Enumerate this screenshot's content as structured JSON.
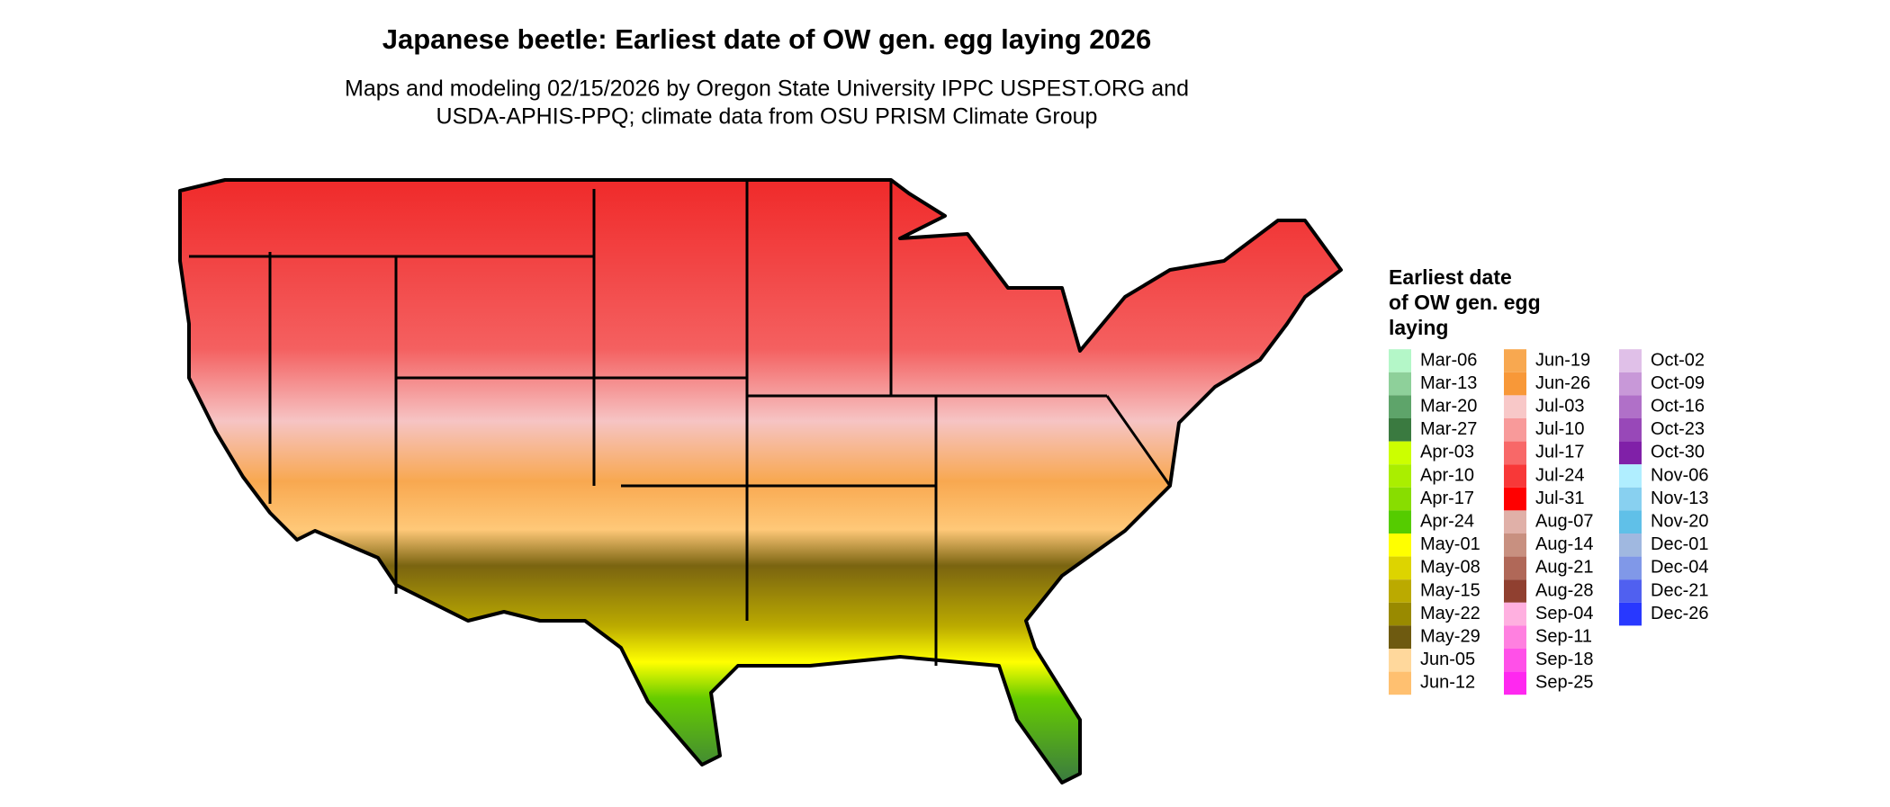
{
  "header": {
    "title": "Japanese beetle: Earliest date of OW gen. egg laying 2026",
    "subtitle_lines": [
      "Maps and modeling 02/15/2026 by Oregon State University IPPC USPEST.ORG and",
      "USDA-APHIS-PPQ; climate data from OSU PRISM Climate Group"
    ]
  },
  "legend": {
    "title_lines": [
      "Earliest date",
      "of OW gen. egg",
      "laying"
    ],
    "entries": [
      {
        "label": "Mar-06",
        "color": "#b4f7c8"
      },
      {
        "label": "Mar-13",
        "color": "#8ed09a"
      },
      {
        "label": "Mar-20",
        "color": "#5ea46a"
      },
      {
        "label": "Mar-27",
        "color": "#3a7a40"
      },
      {
        "label": "Apr-03",
        "color": "#ccff00"
      },
      {
        "label": "Apr-10",
        "color": "#aaee00"
      },
      {
        "label": "Apr-17",
        "color": "#88dd00"
      },
      {
        "label": "Apr-24",
        "color": "#55cc00"
      },
      {
        "label": "May-01",
        "color": "#ffff00"
      },
      {
        "label": "May-08",
        "color": "#ddd400"
      },
      {
        "label": "May-15",
        "color": "#bbaa00"
      },
      {
        "label": "May-22",
        "color": "#998a00"
      },
      {
        "label": "May-29",
        "color": "#6e5a10"
      },
      {
        "label": "Jun-05",
        "color": "#ffd89c"
      },
      {
        "label": "Jun-12",
        "color": "#ffc070"
      },
      {
        "label": "Jun-19",
        "color": "#f8a850"
      },
      {
        "label": "Jun-26",
        "color": "#f89838"
      },
      {
        "label": "Jul-03",
        "color": "#f8c8c8"
      },
      {
        "label": "Jul-10",
        "color": "#f89a9a"
      },
      {
        "label": "Jul-17",
        "color": "#f86868"
      },
      {
        "label": "Jul-24",
        "color": "#f83838"
      },
      {
        "label": "Jul-31",
        "color": "#ff0000"
      },
      {
        "label": "Aug-07",
        "color": "#e0b0a8"
      },
      {
        "label": "Aug-14",
        "color": "#c89080"
      },
      {
        "label": "Aug-21",
        "color": "#b06858"
      },
      {
        "label": "Aug-28",
        "color": "#904030"
      },
      {
        "label": "Sep-04",
        "color": "#ffb0e0"
      },
      {
        "label": "Sep-11",
        "color": "#ff80e0"
      },
      {
        "label": "Sep-18",
        "color": "#ff50e8"
      },
      {
        "label": "Sep-25",
        "color": "#ff28f0"
      },
      {
        "label": "Oct-02",
        "color": "#e0c0e8"
      },
      {
        "label": "Oct-09",
        "color": "#c898d8"
      },
      {
        "label": "Oct-16",
        "color": "#b070c8"
      },
      {
        "label": "Oct-23",
        "color": "#9848b8"
      },
      {
        "label": "Oct-30",
        "color": "#8020a8"
      },
      {
        "label": "Nov-06",
        "color": "#b0eeff"
      },
      {
        "label": "Nov-13",
        "color": "#88d0f0"
      },
      {
        "label": "Nov-20",
        "color": "#60c0e8"
      },
      {
        "label": "Dec-01",
        "color": "#a0b8e0"
      },
      {
        "label": "Dec-04",
        "color": "#8098e8"
      },
      {
        "label": "Dec-21",
        "color": "#5060f0"
      },
      {
        "label": "Dec-26",
        "color": "#2838ff"
      }
    ]
  }
}
